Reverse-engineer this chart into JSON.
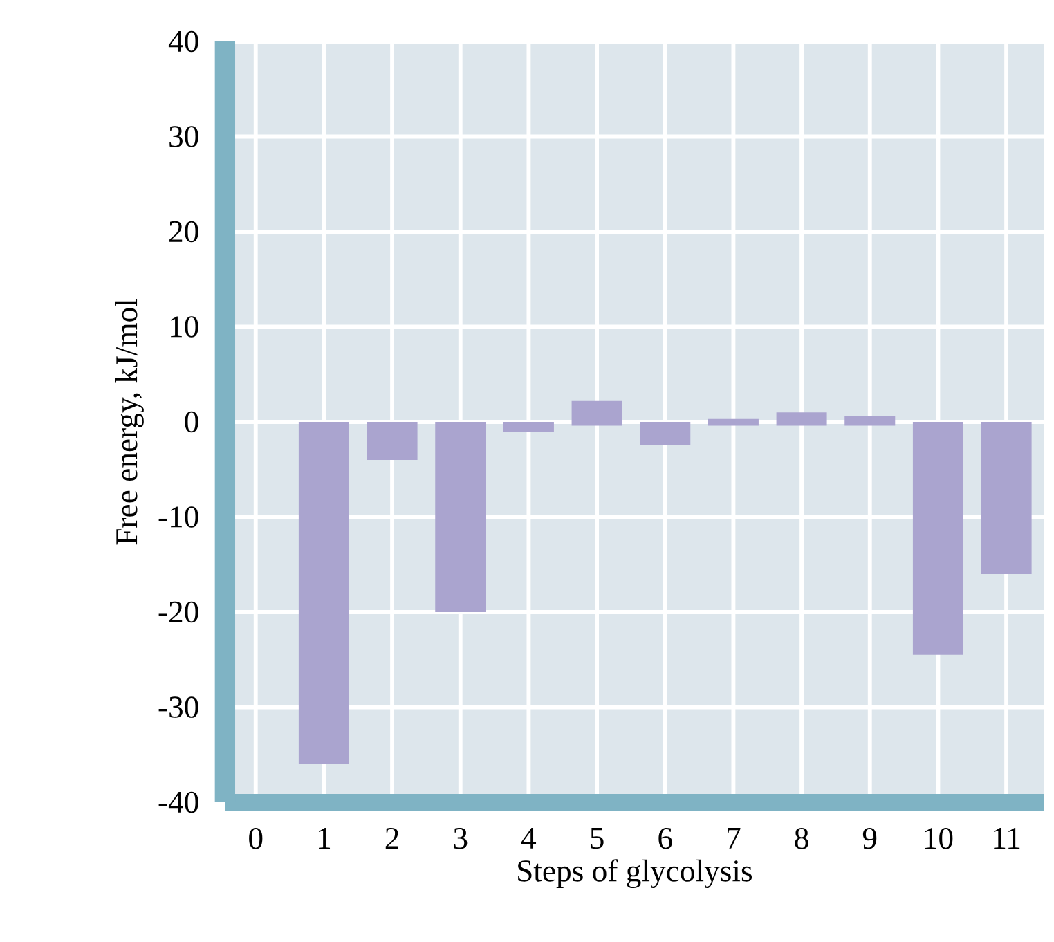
{
  "chart_data": {
    "type": "bar",
    "xlabel": "Steps of glycolysis",
    "ylabel": "Free energy, kJ/mol",
    "categories": [
      "0",
      "1",
      "2",
      "3",
      "4",
      "5",
      "6",
      "7",
      "8",
      "9",
      "10",
      "11"
    ],
    "values": [
      null,
      -36,
      -4,
      -20,
      -1.1,
      2.6,
      -2.4,
      0.7,
      1.4,
      1.0,
      -24.5,
      -16
    ],
    "base": [
      null,
      0,
      0,
      0,
      0,
      -0.4,
      0,
      -0.4,
      -0.4,
      -0.4,
      0,
      0
    ],
    "color": "#aaa4cf",
    "ylim": [
      -40,
      40
    ],
    "yticks": [
      -40,
      -30,
      -20,
      -10,
      0,
      10,
      20,
      30,
      40
    ],
    "grid": true
  }
}
